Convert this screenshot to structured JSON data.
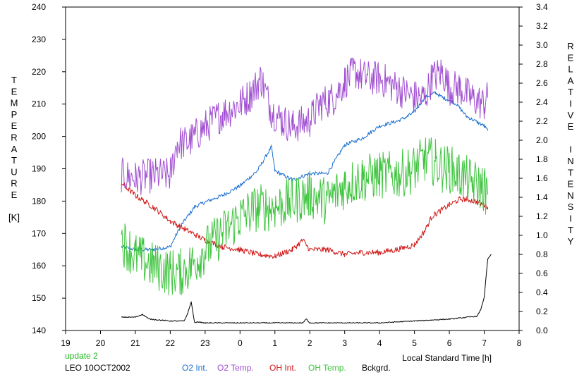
{
  "footer": {
    "update_label": "update 2",
    "station_label": "LEO 10OCT2002"
  },
  "colors": {
    "o2_int": "#1a6fd1",
    "o2_temp": "#a04ed0",
    "oh_int": "#d01818",
    "oh_temp": "#3ec43e",
    "bckgrd": "#000000",
    "update": "#1fb81f"
  },
  "chart_data": {
    "type": "line",
    "title": "",
    "xlabel": "Local Standard Time [h]",
    "ylabel_left": "TEMPERATURE [K]",
    "ylabel_right": "RELATIVE INTENSITY",
    "xlim": [
      19,
      32
    ],
    "ylim_left": [
      140,
      240
    ],
    "ylim_right": [
      0.0,
      3.4
    ],
    "x_tick_labels": [
      "19",
      "20",
      "21",
      "22",
      "23",
      "0",
      "1",
      "2",
      "3",
      "4",
      "5",
      "6",
      "7",
      "8"
    ],
    "y_left_ticks": [
      "140",
      "150",
      "160",
      "170",
      "180",
      "190",
      "200",
      "210",
      "220",
      "230",
      "240"
    ],
    "y_right_ticks": [
      "0.0",
      "0.2",
      "0.4",
      "0.6",
      "0.8",
      "1.0",
      "1.2",
      "1.4",
      "1.6",
      "1.8",
      "2.0",
      "2.2",
      "2.4",
      "2.6",
      "2.8",
      "3.0",
      "3.2",
      "3.4"
    ],
    "legend": [
      "O2 Int.",
      "O2 Temp.",
      "OH Int.",
      "OH Temp.",
      "Bckgrd."
    ],
    "series": [
      {
        "name": "O2 Int.",
        "axis": "right",
        "color": "#1a6fd1",
        "noise": 0.02,
        "x": [
          20.6,
          21.0,
          21.5,
          22.0,
          22.3,
          22.7,
          23.0,
          23.5,
          24.0,
          24.5,
          24.9,
          25.0,
          25.5,
          26.0,
          26.5,
          27.0,
          27.5,
          28.0,
          28.5,
          28.8,
          29.0,
          29.3,
          29.6,
          29.8,
          30.0,
          30.2,
          30.5,
          31.0,
          31.1
        ],
        "y": [
          0.88,
          0.85,
          0.85,
          0.88,
          1.1,
          1.3,
          1.35,
          1.42,
          1.52,
          1.68,
          1.93,
          1.68,
          1.58,
          1.65,
          1.65,
          1.95,
          2.02,
          2.15,
          2.2,
          2.25,
          2.3,
          2.45,
          2.5,
          2.45,
          2.42,
          2.38,
          2.25,
          2.15,
          2.1
        ]
      },
      {
        "name": "O2 Temp.",
        "axis": "left",
        "color": "#a04ed0",
        "noise": 5.5,
        "x": [
          20.6,
          21.0,
          21.5,
          22.0,
          22.2,
          22.5,
          23.0,
          23.5,
          24.0,
          24.3,
          24.6,
          24.9,
          25.2,
          25.5,
          26.0,
          26.3,
          26.7,
          27.0,
          27.3,
          27.6,
          28.0,
          28.5,
          29.0,
          29.3,
          29.5,
          29.8,
          30.0,
          30.3,
          30.6,
          31.0,
          31.1
        ],
        "y": [
          188,
          187,
          188,
          188,
          198,
          198,
          203,
          207,
          210,
          213,
          218,
          208,
          205,
          203,
          205,
          210,
          212,
          217,
          220,
          218,
          218,
          215,
          212,
          212,
          218,
          220,
          215,
          215,
          212,
          210,
          212
        ]
      },
      {
        "name": "OH Int.",
        "axis": "right",
        "color": "#d01818",
        "noise": 0.03,
        "x": [
          20.6,
          21.0,
          21.5,
          22.0,
          22.5,
          23.0,
          23.5,
          24.0,
          24.5,
          25.0,
          25.5,
          25.8,
          26.0,
          26.5,
          27.0,
          27.5,
          28.0,
          28.5,
          29.0,
          29.3,
          29.5,
          30.0,
          30.3,
          30.5,
          30.8,
          31.0,
          31.1
        ],
        "y": [
          1.55,
          1.42,
          1.3,
          1.15,
          1.05,
          0.95,
          0.88,
          0.85,
          0.8,
          0.78,
          0.85,
          0.95,
          0.85,
          0.85,
          0.8,
          0.82,
          0.82,
          0.85,
          0.9,
          1.05,
          1.2,
          1.32,
          1.38,
          1.38,
          1.35,
          1.32,
          1.3
        ]
      },
      {
        "name": "OH Temp.",
        "axis": "left",
        "color": "#3ec43e",
        "noise": 7.5,
        "x": [
          20.6,
          21.0,
          21.5,
          22.0,
          22.3,
          22.6,
          23.0,
          23.5,
          24.0,
          24.5,
          25.0,
          25.5,
          26.0,
          26.5,
          27.0,
          27.5,
          28.0,
          28.5,
          29.0,
          29.3,
          29.6,
          29.8,
          30.0,
          30.3,
          30.6,
          31.0,
          31.1
        ],
        "y": [
          168,
          163,
          160,
          158,
          158,
          160,
          165,
          170,
          175,
          178,
          178,
          180,
          182,
          180,
          185,
          187,
          188,
          188,
          190,
          193,
          192,
          190,
          190,
          188,
          186,
          184,
          182
        ]
      },
      {
        "name": "Bckgrd.",
        "axis": "right",
        "color": "#000000",
        "noise": 0.005,
        "x": [
          20.6,
          21.0,
          21.2,
          21.4,
          22.0,
          22.4,
          22.5,
          22.6,
          22.7,
          22.8,
          23.0,
          24.0,
          25.0,
          25.8,
          25.9,
          26.0,
          27.0,
          28.0,
          29.0,
          30.0,
          30.8,
          30.9,
          31.0,
          31.05,
          31.1,
          31.2
        ],
        "y": [
          0.14,
          0.14,
          0.17,
          0.12,
          0.1,
          0.1,
          0.18,
          0.3,
          0.08,
          0.09,
          0.08,
          0.08,
          0.08,
          0.08,
          0.12,
          0.08,
          0.08,
          0.08,
          0.1,
          0.12,
          0.15,
          0.22,
          0.35,
          0.55,
          0.75,
          0.8
        ]
      }
    ]
  }
}
